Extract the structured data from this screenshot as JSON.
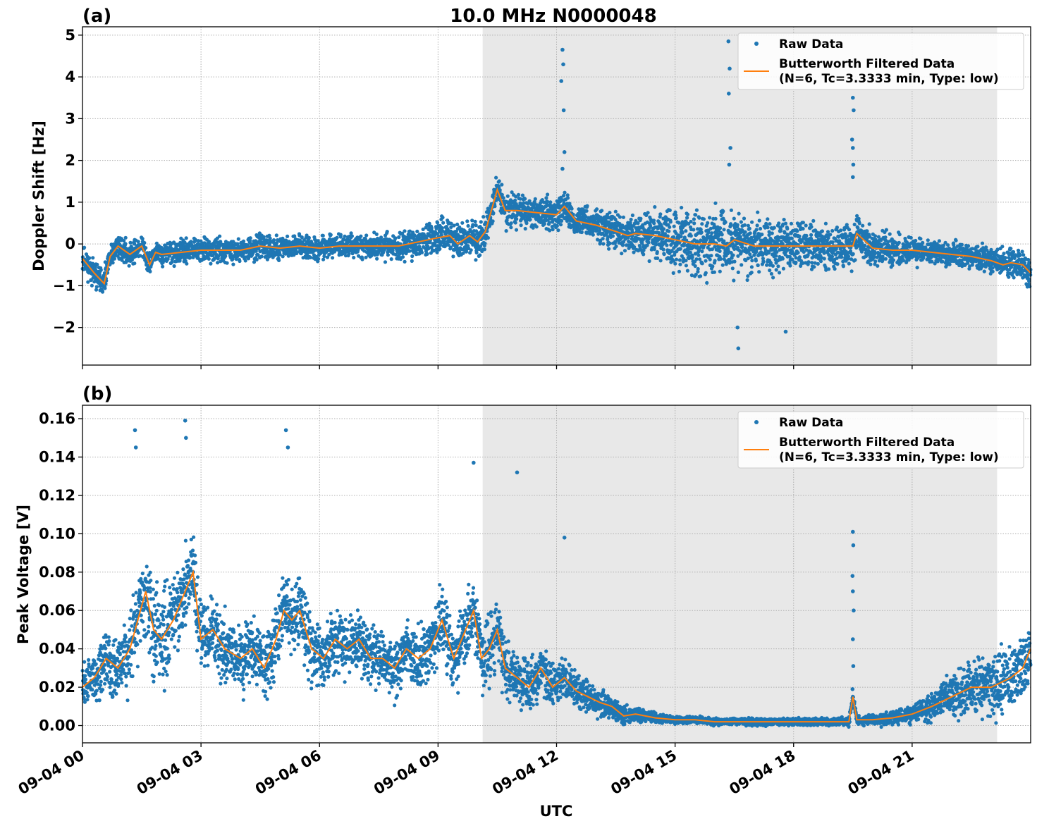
{
  "figure": {
    "title": "10.0 MHz N0000048",
    "xlabel": "UTC"
  },
  "legend": {
    "raw_label": "Raw Data",
    "filtered_label_line1": "Butterworth Filtered Data",
    "filtered_label_line2": "(N=6, Tc=3.3333 min, Type: low)"
  },
  "colors": {
    "raw": "#1f77b4",
    "filtered": "#ff7f0e",
    "shade": "#e8e8e8",
    "grid": "#b0b0b0"
  },
  "chart_data": [
    {
      "type": "scatter",
      "panel_label": "(a)",
      "ylabel": "Doppler Shift [Hz]",
      "xlim": [
        0,
        24
      ],
      "ylim": [
        -2.9,
        5.2
      ],
      "x_unit": "hours UTC on 09-04",
      "x_ticks": [
        0,
        3,
        6,
        9,
        12,
        15,
        18,
        21
      ],
      "x_tick_labels": [
        "09-04 00",
        "09-04 03",
        "09-04 06",
        "09-04 09",
        "09-04 12",
        "09-04 15",
        "09-04 18",
        "09-04 21"
      ],
      "y_ticks": [
        -2,
        -1,
        0,
        1,
        2,
        3,
        4,
        5
      ],
      "y_tick_labels": [
        "−2",
        "−1",
        "0",
        "1",
        "2",
        "3",
        "4",
        "5"
      ],
      "grid": true,
      "legend_position": "top-right",
      "shaded_region": [
        10.13,
        23.15
      ],
      "series": [
        {
          "name": "Butterworth Filtered Data",
          "kind": "line",
          "x": [
            0,
            0.3,
            0.55,
            0.7,
            0.9,
            1.2,
            1.5,
            1.7,
            1.85,
            2.0,
            2.5,
            3.0,
            3.5,
            4.0,
            4.5,
            5.0,
            5.5,
            6.0,
            6.5,
            7.0,
            7.5,
            8.0,
            8.5,
            9.0,
            9.3,
            9.5,
            9.8,
            10.0,
            10.2,
            10.5,
            10.7,
            11.0,
            11.5,
            12.0,
            12.2,
            12.5,
            13.0,
            13.5,
            13.8,
            14.0,
            14.5,
            15.0,
            15.5,
            16.0,
            16.3,
            16.5,
            17.0,
            17.5,
            18.0,
            18.5,
            19.0,
            19.5,
            19.6,
            20.0,
            20.5,
            21.0,
            21.5,
            22.0,
            22.5,
            23.0,
            23.3,
            23.5,
            23.8,
            24.0
          ],
          "y": [
            -0.35,
            -0.7,
            -0.95,
            -0.3,
            -0.05,
            -0.25,
            -0.05,
            -0.5,
            -0.2,
            -0.25,
            -0.2,
            -0.15,
            -0.15,
            -0.15,
            -0.05,
            -0.1,
            -0.05,
            -0.1,
            -0.05,
            -0.05,
            -0.05,
            -0.05,
            0.05,
            0.15,
            0.2,
            0.0,
            0.2,
            0.05,
            0.3,
            1.3,
            0.8,
            0.8,
            0.75,
            0.7,
            0.9,
            0.55,
            0.45,
            0.3,
            0.2,
            0.25,
            0.2,
            0.1,
            0.0,
            0.0,
            -0.05,
            0.1,
            -0.05,
            -0.05,
            -0.05,
            -0.05,
            -0.05,
            -0.05,
            0.25,
            -0.1,
            -0.15,
            -0.15,
            -0.2,
            -0.25,
            -0.3,
            -0.4,
            -0.5,
            -0.45,
            -0.5,
            -0.7
          ]
        },
        {
          "name": "Raw Data",
          "kind": "points",
          "spread_x": [
            0,
            1,
            2,
            3,
            4,
            5,
            6,
            7,
            8,
            9,
            10,
            10.5,
            11,
            12,
            13,
            14,
            15,
            16,
            17,
            18,
            19,
            20,
            21,
            22,
            23,
            24
          ],
          "spread": [
            0.35,
            0.3,
            0.3,
            0.3,
            0.3,
            0.3,
            0.3,
            0.3,
            0.35,
            0.45,
            0.45,
            0.45,
            0.4,
            0.4,
            0.4,
            0.5,
            0.8,
            0.85,
            0.75,
            0.6,
            0.55,
            0.5,
            0.35,
            0.3,
            0.35,
            0.4
          ],
          "spike_points": [
            [
              12.15,
              4.65
            ],
            [
              12.17,
              4.3
            ],
            [
              12.12,
              3.9
            ],
            [
              12.18,
              3.2
            ],
            [
              12.2,
              2.2
            ],
            [
              12.15,
              1.8
            ],
            [
              16.35,
              4.85
            ],
            [
              16.38,
              4.2
            ],
            [
              16.36,
              3.6
            ],
            [
              16.4,
              2.3
            ],
            [
              16.37,
              1.9
            ],
            [
              19.5,
              3.5
            ],
            [
              19.52,
              3.2
            ],
            [
              19.48,
              2.5
            ],
            [
              19.5,
              2.3
            ],
            [
              19.51,
              1.9
            ],
            [
              19.5,
              1.6
            ],
            [
              16.6,
              -2.5
            ],
            [
              16.58,
              -2.0
            ],
            [
              17.8,
              -2.1
            ]
          ]
        }
      ]
    },
    {
      "type": "scatter",
      "panel_label": "(b)",
      "ylabel": "Peak Voltage [V]",
      "xlim": [
        0,
        24
      ],
      "ylim": [
        -0.009,
        0.167
      ],
      "x_unit": "hours UTC on 09-04",
      "x_ticks": [
        0,
        3,
        6,
        9,
        12,
        15,
        18,
        21
      ],
      "x_tick_labels": [
        "09-04 00",
        "09-04 03",
        "09-04 06",
        "09-04 09",
        "09-04 12",
        "09-04 15",
        "09-04 18",
        "09-04 21"
      ],
      "y_ticks": [
        0.0,
        0.02,
        0.04,
        0.06,
        0.08,
        0.1,
        0.12,
        0.14,
        0.16
      ],
      "y_tick_labels": [
        "0.00",
        "0.02",
        "0.04",
        "0.06",
        "0.08",
        "0.10",
        "0.12",
        "0.14",
        "0.16"
      ],
      "grid": true,
      "legend_position": "top-right",
      "shaded_region": [
        10.13,
        23.15
      ],
      "series": [
        {
          "name": "Butterworth Filtered Data",
          "kind": "line",
          "x": [
            0,
            0.3,
            0.6,
            0.9,
            1.2,
            1.4,
            1.6,
            1.8,
            2.0,
            2.3,
            2.6,
            2.8,
            3.0,
            3.3,
            3.6,
            4.0,
            4.3,
            4.6,
            4.9,
            5.1,
            5.3,
            5.5,
            5.8,
            6.1,
            6.4,
            6.7,
            7.0,
            7.3,
            7.6,
            7.9,
            8.2,
            8.5,
            8.8,
            9.1,
            9.4,
            9.7,
            9.9,
            10.1,
            10.3,
            10.5,
            10.7,
            11.0,
            11.3,
            11.6,
            11.9,
            12.2,
            12.5,
            12.8,
            13.1,
            13.4,
            13.7,
            14.0,
            14.5,
            15.0,
            15.5,
            16.0,
            17.0,
            18.0,
            19.0,
            19.4,
            19.5,
            19.6,
            20.0,
            20.5,
            21.0,
            21.5,
            22.0,
            22.5,
            23.0,
            23.5,
            23.8,
            24.0
          ],
          "y": [
            0.02,
            0.025,
            0.035,
            0.03,
            0.04,
            0.055,
            0.07,
            0.05,
            0.045,
            0.055,
            0.07,
            0.08,
            0.045,
            0.05,
            0.04,
            0.035,
            0.04,
            0.03,
            0.045,
            0.06,
            0.055,
            0.06,
            0.04,
            0.035,
            0.045,
            0.04,
            0.045,
            0.035,
            0.035,
            0.03,
            0.04,
            0.035,
            0.04,
            0.055,
            0.035,
            0.05,
            0.06,
            0.035,
            0.04,
            0.05,
            0.03,
            0.025,
            0.02,
            0.03,
            0.02,
            0.025,
            0.018,
            0.015,
            0.012,
            0.01,
            0.005,
            0.006,
            0.004,
            0.003,
            0.003,
            0.002,
            0.002,
            0.002,
            0.002,
            0.002,
            0.015,
            0.003,
            0.003,
            0.004,
            0.006,
            0.01,
            0.015,
            0.02,
            0.02,
            0.025,
            0.03,
            0.04
          ]
        },
        {
          "name": "Raw Data",
          "kind": "points",
          "spread_x": [
            0,
            1,
            2,
            3,
            4,
            5,
            6,
            7,
            8,
            9,
            10,
            11,
            12,
            13,
            14,
            15,
            16,
            17,
            18,
            19,
            20,
            21,
            22,
            23,
            24
          ],
          "spread": [
            0.012,
            0.018,
            0.03,
            0.02,
            0.018,
            0.022,
            0.018,
            0.018,
            0.016,
            0.018,
            0.02,
            0.016,
            0.012,
            0.008,
            0.004,
            0.002,
            0.002,
            0.002,
            0.002,
            0.002,
            0.003,
            0.005,
            0.012,
            0.018,
            0.02
          ],
          "spike_points": [
            [
              1.33,
              0.154
            ],
            [
              1.35,
              0.145
            ],
            [
              2.6,
              0.159
            ],
            [
              2.62,
              0.15
            ],
            [
              5.15,
              0.154
            ],
            [
              5.2,
              0.145
            ],
            [
              11.0,
              0.132
            ],
            [
              12.2,
              0.098
            ],
            [
              9.9,
              0.137
            ],
            [
              19.5,
              0.101
            ],
            [
              19.51,
              0.094
            ],
            [
              19.49,
              0.078
            ],
            [
              19.5,
              0.07
            ],
            [
              19.52,
              0.06
            ],
            [
              19.5,
              0.045
            ],
            [
              19.51,
              0.031
            ],
            [
              19.49,
              0.019
            ]
          ]
        }
      ]
    }
  ]
}
